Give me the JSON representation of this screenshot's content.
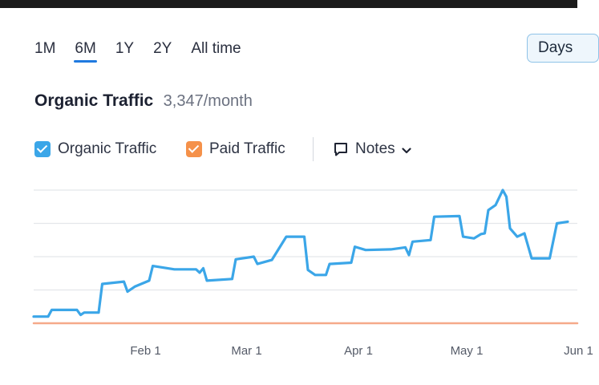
{
  "range_tabs": [
    {
      "label": "1M",
      "active": false
    },
    {
      "label": "6M",
      "active": true
    },
    {
      "label": "1Y",
      "active": false
    },
    {
      "label": "2Y",
      "active": false
    },
    {
      "label": "All time",
      "active": false
    }
  ],
  "granularity_button": "Days",
  "header": {
    "title": "Organic Traffic",
    "value": "3,347/month"
  },
  "legend": {
    "items": [
      {
        "label": "Organic Traffic",
        "color": "#3ba6e8",
        "checked": true
      },
      {
        "label": "Paid Traffic",
        "color": "#f5914a",
        "checked": true
      }
    ],
    "notes_label": "Notes"
  },
  "colors": {
    "organic": "#3ba6e8",
    "paid": "#f5a98a",
    "grid": "#e4e6ea",
    "active_tab": "#1f7ae0"
  },
  "chart_data": {
    "type": "line",
    "x_axis": "date",
    "x_ticks": [
      "Feb 1",
      "Mar 1",
      "Apr 1",
      "May 1",
      "Jun 1"
    ],
    "y_tick_labels_visible": false,
    "grid": true,
    "ylim": [
      0,
      4
    ],
    "series": [
      {
        "name": "Organic Traffic",
        "color": "#3ba6e8",
        "points": [
          [
            "Jan 1",
            0.2
          ],
          [
            "Jan 5",
            0.2
          ],
          [
            "Jan 6",
            0.4
          ],
          [
            "Jan 13",
            0.4
          ],
          [
            "Jan 14",
            0.25
          ],
          [
            "Jan 15",
            0.32
          ],
          [
            "Jan 19",
            0.32
          ],
          [
            "Jan 20",
            1.18
          ],
          [
            "Jan 26",
            1.25
          ],
          [
            "Jan 27",
            0.95
          ],
          [
            "Jan 29",
            1.1
          ],
          [
            "Feb 2",
            1.28
          ],
          [
            "Feb 3",
            1.72
          ],
          [
            "Feb 9",
            1.62
          ],
          [
            "Feb 15",
            1.62
          ],
          [
            "Feb 16",
            1.52
          ],
          [
            "Feb 17",
            1.65
          ],
          [
            "Feb 18",
            1.28
          ],
          [
            "Feb 25",
            1.33
          ],
          [
            "Feb 26",
            1.92
          ],
          [
            "Mar 3",
            2.0
          ],
          [
            "Mar 4",
            1.78
          ],
          [
            "Mar 8",
            1.9
          ],
          [
            "Mar 10",
            2.25
          ],
          [
            "Mar 12",
            2.6
          ],
          [
            "Mar 17",
            2.6
          ],
          [
            "Mar 18",
            1.6
          ],
          [
            "Mar 20",
            1.45
          ],
          [
            "Mar 23",
            1.45
          ],
          [
            "Mar 24",
            1.78
          ],
          [
            "Mar 30",
            1.82
          ],
          [
            "Mar 31",
            2.3
          ],
          [
            "Apr 3",
            2.2
          ],
          [
            "Apr 10",
            2.22
          ],
          [
            "Apr 14",
            2.28
          ],
          [
            "Apr 15",
            2.05
          ],
          [
            "Apr 16",
            2.45
          ],
          [
            "Apr 21",
            2.5
          ],
          [
            "Apr 22",
            3.2
          ],
          [
            "Apr 29",
            3.22
          ],
          [
            "Apr 30",
            2.6
          ],
          [
            "May 3",
            2.55
          ],
          [
            "May 5",
            2.68
          ],
          [
            "May 6",
            2.7
          ],
          [
            "May 7",
            3.4
          ],
          [
            "May 9",
            3.55
          ],
          [
            "May 11",
            4.0
          ],
          [
            "May 12",
            3.8
          ],
          [
            "May 13",
            2.85
          ],
          [
            "May 15",
            2.6
          ],
          [
            "May 17",
            2.7
          ],
          [
            "May 19",
            1.95
          ],
          [
            "May 24",
            1.95
          ],
          [
            "May 26",
            3.0
          ],
          [
            "May 29",
            3.05
          ]
        ]
      },
      {
        "name": "Paid Traffic",
        "color": "#f5a98a",
        "points": [
          [
            "Jan 1",
            0
          ],
          [
            "May 29",
            0
          ]
        ]
      }
    ]
  }
}
